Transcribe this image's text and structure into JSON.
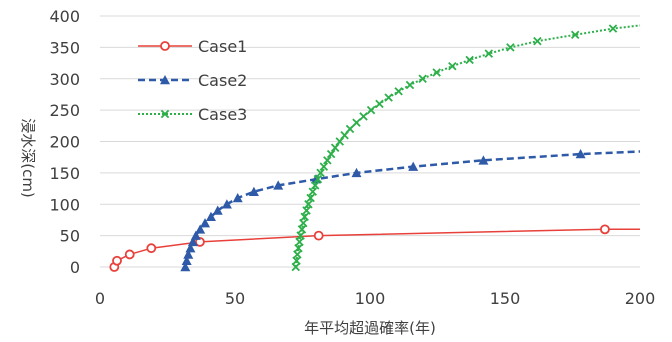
{
  "chart_data": {
    "type": "line",
    "title": "",
    "xlabel": "年平均超過確率(年)",
    "ylabel": "浸水深(cm)",
    "xlim": [
      0,
      200
    ],
    "ylim": [
      0,
      400
    ],
    "x_ticks": [
      "0",
      "50",
      "100",
      "150",
      "200"
    ],
    "y_ticks": [
      "0",
      "50",
      "100",
      "150",
      "200",
      "250",
      "300",
      "350",
      "400"
    ],
    "grid": "horizontal",
    "legend_position": "top-left",
    "series": [
      {
        "name": "Case1",
        "color": "#e8403a",
        "line_style": "solid",
        "marker": "circle-open",
        "points": [
          [
            5.3,
            0
          ],
          [
            6.3,
            10
          ],
          [
            11,
            20
          ],
          [
            19,
            30
          ],
          [
            37,
            40
          ],
          [
            81,
            50
          ],
          [
            187,
            60
          ],
          [
            200,
            60
          ]
        ]
      },
      {
        "name": "Case2",
        "color": "#2e5aa8",
        "line_style": "dashed",
        "marker": "triangle",
        "points": [
          [
            31.6,
            0
          ],
          [
            32.1,
            10
          ],
          [
            32.7,
            20
          ],
          [
            33.5,
            30
          ],
          [
            34.4,
            40
          ],
          [
            35.5,
            50
          ],
          [
            37.1,
            60
          ],
          [
            38.9,
            70
          ],
          [
            41.1,
            80
          ],
          [
            43.6,
            90
          ],
          [
            47,
            100
          ],
          [
            51,
            110
          ],
          [
            57,
            120
          ],
          [
            66,
            130
          ],
          [
            80,
            140
          ],
          [
            95,
            150
          ],
          [
            116,
            160
          ],
          [
            142,
            170
          ],
          [
            178,
            180
          ],
          [
            200,
            184
          ]
        ]
      },
      {
        "name": "Case3",
        "color": "#2daf4a",
        "line_style": "dotted",
        "marker": "x",
        "points": [
          [
            72.5,
            0
          ],
          [
            72.8,
            10
          ],
          [
            73.1,
            20
          ],
          [
            73.5,
            30
          ],
          [
            73.9,
            40
          ],
          [
            74.3,
            50
          ],
          [
            74.8,
            60
          ],
          [
            75.3,
            70
          ],
          [
            75.8,
            80
          ],
          [
            76.5,
            90
          ],
          [
            77.2,
            100
          ],
          [
            78,
            110
          ],
          [
            78.8,
            120
          ],
          [
            79.7,
            130
          ],
          [
            80.7,
            140
          ],
          [
            81.7,
            150
          ],
          [
            82.9,
            160
          ],
          [
            84.2,
            170
          ],
          [
            85.6,
            180
          ],
          [
            87.1,
            190
          ],
          [
            88.8,
            200
          ],
          [
            90.6,
            210
          ],
          [
            92.6,
            220
          ],
          [
            95,
            230
          ],
          [
            97.6,
            240
          ],
          [
            100.4,
            250
          ],
          [
            103.5,
            260
          ],
          [
            106.9,
            270
          ],
          [
            110.6,
            280
          ],
          [
            114.8,
            290
          ],
          [
            119.5,
            300
          ],
          [
            124.7,
            310
          ],
          [
            130.5,
            320
          ],
          [
            136.9,
            330
          ],
          [
            144,
            340
          ],
          [
            152,
            350
          ],
          [
            162,
            360
          ],
          [
            176,
            370
          ],
          [
            190,
            380
          ],
          [
            200,
            385
          ]
        ]
      }
    ]
  }
}
